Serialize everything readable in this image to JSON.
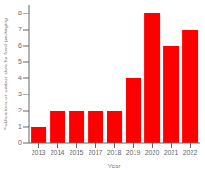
{
  "chart_data": {
    "type": "bar",
    "xlabel": "Year",
    "ylabel": "Publications on carbon dots for food packaging",
    "categories": [
      "2013",
      "2014",
      "2015",
      "2017",
      "2018",
      "2019",
      "2020",
      "2021",
      "2022"
    ],
    "values": [
      1,
      2,
      2,
      2,
      2,
      4,
      8,
      6,
      7
    ],
    "color": "#FF0000",
    "ylim": [
      0,
      8.5
    ],
    "yticks": [
      0,
      1,
      2,
      3,
      4,
      5,
      6,
      7,
      8
    ],
    "grid": false
  }
}
